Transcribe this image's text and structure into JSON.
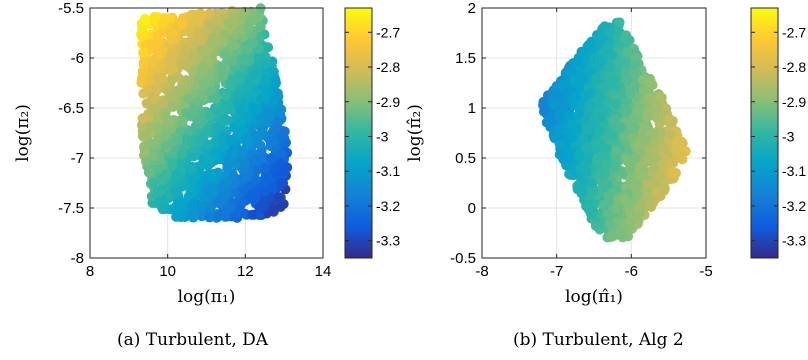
{
  "captions": [
    "(a) Turbulent, DA",
    "(b) Turbulent, Alg 2"
  ],
  "colormap": [
    "#352a87",
    "#0f5cdd",
    "#1481d6",
    "#06a4ca",
    "#2eb7a4",
    "#87bf77",
    "#d1bb59",
    "#fec832",
    "#f9fb0e"
  ],
  "chart_data": [
    {
      "type": "scatter",
      "title": "",
      "xlabel": "log(π₁)",
      "ylabel": "log(π₂)",
      "xlim": [
        8,
        14
      ],
      "ylim": [
        -8,
        -5.5
      ],
      "xticks": [
        8,
        10,
        12,
        14
      ],
      "yticks": [
        -8,
        -7.5,
        -7,
        -6.5,
        -6,
        -5.5
      ],
      "grid": true,
      "colorbar": {
        "clim": [
          -3.35,
          -2.63
        ],
        "ticks": [
          -2.7,
          -2.8,
          -2.9,
          -3,
          -3.1,
          -3.2,
          -3.3
        ]
      },
      "region_polygon": [
        [
          9.3,
          -5.6
        ],
        [
          12.4,
          -5.5
        ],
        [
          12.8,
          -6.2
        ],
        [
          13.1,
          -6.8
        ],
        [
          13.05,
          -7.45
        ],
        [
          12.6,
          -7.6
        ],
        [
          10.2,
          -7.6
        ],
        [
          9.6,
          -7.45
        ],
        [
          9.35,
          -6.9
        ],
        [
          9.3,
          -6.2
        ]
      ],
      "color_model": {
        "c0": -2.98,
        "cx": -0.095,
        "cy": 0.18,
        "x0": 11,
        "y0": -6.6
      }
    },
    {
      "type": "scatter",
      "title": "",
      "xlabel": "log(π̂₁)",
      "ylabel": "log(π̂₂)",
      "xlim": [
        -8,
        -5
      ],
      "ylim": [
        -0.5,
        2
      ],
      "xticks": [
        -8,
        -7,
        -6,
        -5
      ],
      "yticks": [
        -0.5,
        0,
        0.5,
        1,
        1.5,
        2
      ],
      "grid": true,
      "colorbar": {
        "clim": [
          -3.35,
          -2.63
        ],
        "ticks": [
          -2.7,
          -2.8,
          -2.9,
          -3,
          -3.1,
          -3.2,
          -3.3
        ]
      },
      "region_polygon": [
        [
          -7.2,
          1.05
        ],
        [
          -6.7,
          1.55
        ],
        [
          -6.2,
          1.95
        ],
        [
          -5.9,
          1.5
        ],
        [
          -5.55,
          1.05
        ],
        [
          -5.25,
          0.55
        ],
        [
          -5.5,
          0.2
        ],
        [
          -5.8,
          -0.05
        ],
        [
          -6.05,
          -0.3
        ],
        [
          -6.4,
          -0.3
        ],
        [
          -6.85,
          0.35
        ],
        [
          -7.15,
          0.85
        ]
      ],
      "color_model": {
        "c0": -2.98,
        "cx": 0.19,
        "cy": -0.04,
        "x0": -6.3,
        "y0": 0.8
      }
    }
  ]
}
